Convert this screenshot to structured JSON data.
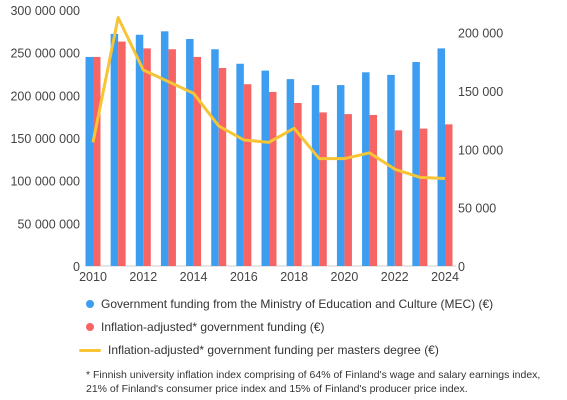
{
  "colors": {
    "mec": "#3d9df0",
    "adjusted": "#f66464",
    "per_degree": "#f6c435",
    "axis": "#cccccc",
    "text": "#444444"
  },
  "chart_data": {
    "type": "bar",
    "title": "",
    "xlabel": "",
    "ylabel": "",
    "categories": [
      "2010",
      "2011",
      "2012",
      "2013",
      "2014",
      "2015",
      "2016",
      "2017",
      "2018",
      "2019",
      "2020",
      "2021",
      "2022",
      "2023",
      "2024"
    ],
    "x_tick_labels": [
      "2010",
      "2012",
      "2014",
      "2016",
      "2018",
      "2020",
      "2022",
      "2024"
    ],
    "ylim": [
      0,
      300000000
    ],
    "y_ticks": [
      0,
      50000000,
      100000000,
      150000000,
      200000000,
      250000000,
      300000000
    ],
    "y_tick_labels": [
      "0",
      "50 000 000",
      "100 000 000",
      "150 000 000",
      "200 000 000",
      "250 000 000",
      "300 000 000"
    ],
    "y2lim": [
      0,
      216000
    ],
    "y2_ticks": [
      0,
      50000,
      100000,
      150000,
      200000
    ],
    "y2_tick_labels": [
      "0",
      "50 000",
      "100 000",
      "150 000",
      "200 000"
    ],
    "series": [
      {
        "name": "Government funding from the Ministry of Education and Culture (MEC) (€)",
        "type": "bar",
        "axis": "left",
        "values": [
          245000000,
          272000000,
          271000000,
          275000000,
          266000000,
          254000000,
          237000000,
          229000000,
          219000000,
          212000000,
          212000000,
          227000000,
          224000000,
          239000000,
          255000000
        ]
      },
      {
        "name": "Inflation-adjusted* government funding (€)",
        "type": "bar",
        "axis": "left",
        "values": [
          245000000,
          263000000,
          255000000,
          254000000,
          245000000,
          232000000,
          213000000,
          204000000,
          191000000,
          180000000,
          178000000,
          177000000,
          159000000,
          161000000,
          166000000
        ]
      },
      {
        "name": "Inflation-adjusted* government funding per masters degree (€)",
        "type": "line",
        "axis": "right",
        "values": [
          106000,
          213000,
          168000,
          158000,
          148000,
          120000,
          108000,
          106000,
          118000,
          92000,
          92000,
          97000,
          83000,
          76000,
          75000
        ]
      }
    ],
    "legend_placement": "bottom",
    "grid": false
  },
  "footnote": {
    "line1": "* Finnish university inflation index comprising of 64% of Finland's wage and salary earnings index,",
    "line2": "21% of Finland's consumer price index and 15% of Finland's producer price index."
  }
}
